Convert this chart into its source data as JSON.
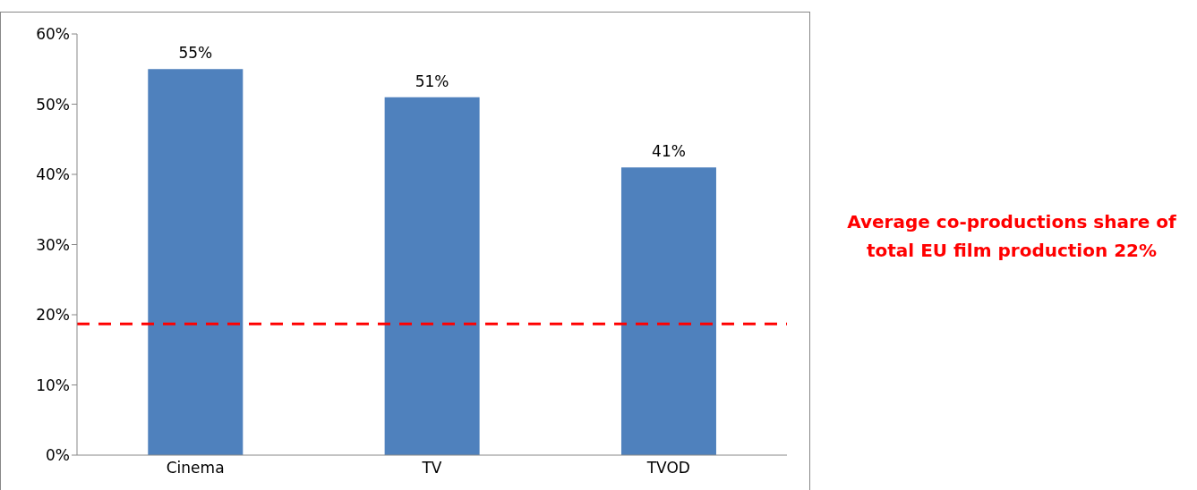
{
  "chart_data": {
    "type": "bar",
    "categories": [
      "Cinema",
      "TV",
      "TVOD"
    ],
    "values": [
      55,
      51,
      41
    ],
    "color": "#4f81bd",
    "value_labels": [
      "55%",
      "51%",
      "41%"
    ],
    "ylim": [
      0,
      60
    ],
    "yticks": [
      {
        "value": 0,
        "label": "0%"
      },
      {
        "value": 10,
        "label": "10%"
      },
      {
        "value": 20,
        "label": "20%"
      },
      {
        "value": 30,
        "label": "30%"
      },
      {
        "value": 40,
        "label": "40%"
      },
      {
        "value": 50,
        "label": "50%"
      },
      {
        "value": 60,
        "label": "60%"
      }
    ],
    "ref_lines": [
      {
        "axis": "y",
        "value": 18.7,
        "label": "Average co-productions share  of total EU film production 22%",
        "color": "#ff0000",
        "line_style": "dashed"
      }
    ],
    "grid": false,
    "legend": false
  }
}
